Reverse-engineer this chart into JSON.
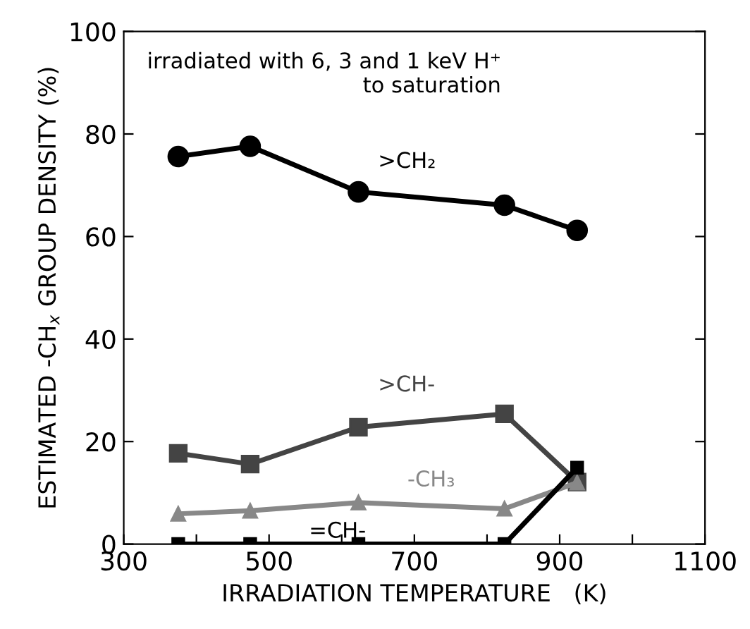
{
  "chart_data": {
    "type": "line",
    "xlabel": "IRRADIATION TEMPERATURE   (K)",
    "ylabel": "ESTIMATED -CH$_{x}$ GROUP DENSITY (%)",
    "x": [
      375,
      474,
      623,
      824,
      924
    ],
    "series": [
      {
        "name": ">CH₂",
        "color": "#000000",
        "marker": "circle",
        "values": [
          75.6,
          77.6,
          68.7,
          66.1,
          61.2
        ]
      },
      {
        "name": ">CH-",
        "color": "#444444",
        "marker": "square",
        "values": [
          17.7,
          15.6,
          22.8,
          25.4,
          12.1
        ]
      },
      {
        "name": "-CH₃",
        "color": "#888888",
        "marker": "triangle",
        "values": [
          5.9,
          6.5,
          8.1,
          6.9,
          12.0
        ]
      },
      {
        "name": "=CH-",
        "color": "#000000",
        "marker": "square",
        "values": [
          0,
          0,
          0,
          0,
          14.9
        ]
      }
    ],
    "xlim": [
      300,
      1100
    ],
    "xticks": [
      300,
      {
        "value": 400,
        "label": null
      },
      500,
      {
        "value": 600,
        "label": null
      },
      700,
      {
        "value": 800,
        "label": null
      },
      900,
      {
        "value": 1000,
        "label": null
      },
      1100
    ],
    "ylim": [
      0,
      100
    ],
    "yticks": [
      0,
      20,
      40,
      60,
      80,
      100
    ],
    "grid": false,
    "legend": false,
    "line_style": "solid",
    "annotations": [
      "irradiated with 6, 3 and 1 keV H⁺\nto saturation"
    ]
  }
}
